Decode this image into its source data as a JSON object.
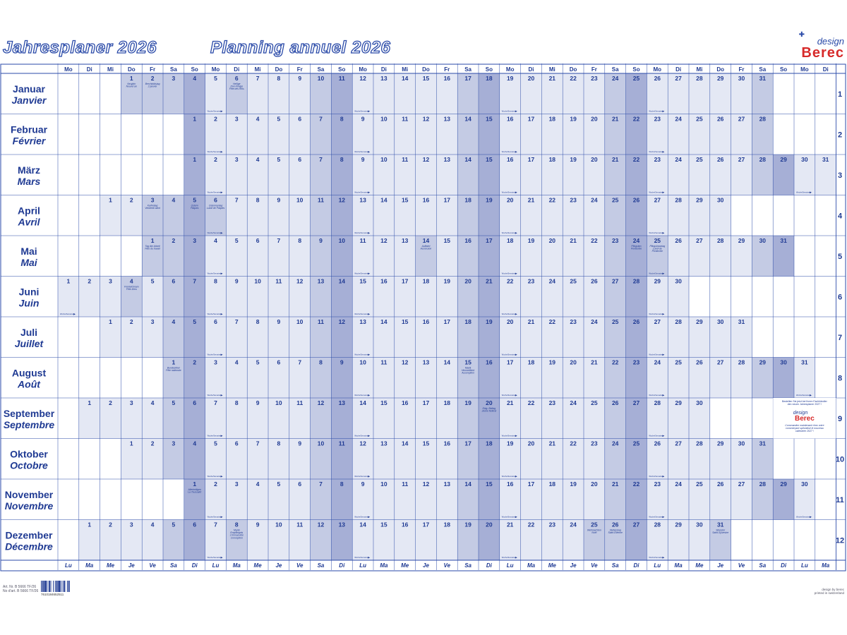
{
  "header": {
    "title_de": "Jahresplaner 2026",
    "title_fr": "Planning annuel 2026",
    "logo_design": "design",
    "logo_brand": "Berec"
  },
  "calendar": {
    "weekdays_top": [
      "Mo",
      "Di",
      "Mi",
      "Do",
      "Fr",
      "Sa",
      "So"
    ],
    "weekdays_bottom": [
      "Lu",
      "Ma",
      "Me",
      "Je",
      "Ve",
      "Sa",
      "Di"
    ],
    "months": [
      {
        "de": "Januar",
        "fr": "Janvier",
        "num": "1",
        "days": 31
      },
      {
        "de": "Februar",
        "fr": "Février",
        "num": "2",
        "days": 28
      },
      {
        "de": "März",
        "fr": "Mars",
        "num": "3",
        "days": 31
      },
      {
        "de": "April",
        "fr": "Avril",
        "num": "4",
        "days": 30
      },
      {
        "de": "Mai",
        "fr": "Mai",
        "num": "5",
        "days": 31
      },
      {
        "de": "Juni",
        "fr": "Juin",
        "num": "6",
        "days": 30
      },
      {
        "de": "Juli",
        "fr": "Juillet",
        "num": "7",
        "days": 31
      },
      {
        "de": "August",
        "fr": "Août",
        "num": "8",
        "days": 31
      },
      {
        "de": "September",
        "fr": "Septembre",
        "num": "9",
        "days": 30
      },
      {
        "de": "Oktober",
        "fr": "Octobre",
        "num": "10",
        "days": 31
      },
      {
        "de": "November",
        "fr": "Novembre",
        "num": "11",
        "days": 30
      },
      {
        "de": "Dezember",
        "fr": "Décembre",
        "num": "12",
        "days": 31
      }
    ],
    "start_offsets": [
      3,
      6,
      6,
      2,
      4,
      0,
      2,
      5,
      1,
      3,
      6,
      1
    ],
    "holidays": [
      {
        "m": 0,
        "d": 1,
        "text": [
          "Neujahr",
          "Nouvel an"
        ]
      },
      {
        "m": 0,
        "d": 2,
        "text": [
          "Berchtoldstag",
          "2 janvier"
        ]
      },
      {
        "m": 0,
        "d": 6,
        "text": [
          "Heilige",
          "Drei Könige",
          "Fête des Rois"
        ]
      },
      {
        "m": 3,
        "d": 3,
        "text": [
          "Karfreitag",
          "Vendredi saint"
        ]
      },
      {
        "m": 3,
        "d": 5,
        "text": [
          "Ostern",
          "Pâques"
        ]
      },
      {
        "m": 3,
        "d": 6,
        "text": [
          "Ostermontag",
          "Lundi de Pâques"
        ]
      },
      {
        "m": 4,
        "d": 1,
        "text": [
          "Tag der Arbeit",
          "Fête du travail"
        ]
      },
      {
        "m": 4,
        "d": 14,
        "text": [
          "Auffahrt",
          "Ascension"
        ]
      },
      {
        "m": 4,
        "d": 24,
        "text": [
          "Pfingsten",
          "Pentecôte"
        ]
      },
      {
        "m": 4,
        "d": 25,
        "text": [
          "Pfingstmontag",
          "Lundi de",
          "Pentecôte"
        ]
      },
      {
        "m": 5,
        "d": 4,
        "text": [
          "Fronleichnam",
          "Fête-Dieu"
        ]
      },
      {
        "m": 7,
        "d": 1,
        "text": [
          "Bundesfeier",
          "Fête nationale"
        ]
      },
      {
        "m": 7,
        "d": 15,
        "text": [
          "Mariä",
          "Himmelfahrt",
          "Assomption"
        ]
      },
      {
        "m": 8,
        "d": 20,
        "text": [
          "Eidg. Bettag",
          "Jeûne fédéral"
        ]
      },
      {
        "m": 10,
        "d": 1,
        "text": [
          "Allerheiligen",
          "La Toussaint"
        ]
      },
      {
        "m": 11,
        "d": 8,
        "text": [
          "Mariä",
          "Empfängnis",
          "L'Immaculée",
          "Conception"
        ]
      },
      {
        "m": 11,
        "d": 25,
        "text": [
          "Weihnachten",
          "Noël"
        ]
      },
      {
        "m": 11,
        "d": 26,
        "text": [
          "Stefanstag",
          "Saint-Etienne"
        ]
      },
      {
        "m": 11,
        "d": 31,
        "text": [
          "Silvester",
          "Saint-Sylvestre"
        ]
      }
    ],
    "week_marker": "Woche/Semaine",
    "promo": {
      "de": [
        "Bestellen Sie jetzt bei Ihrem Fachhändler",
        "den neuen Jahresplaner 2027 !"
      ],
      "logo_design": "design",
      "logo_brand": "Berec",
      "fr": [
        "Commandez maintenant chez votre",
        "commerçant spécialisé le nouveau",
        "calendrier 2027 !"
      ]
    }
  },
  "footer": {
    "art_de": "Art. Nr. B 5666 TF/26",
    "art_fr": "No d'art. B 5666 TF/26",
    "barcode_number": "7610184652511",
    "credit_1": "design by berec",
    "credit_2": "printed in switzerland"
  },
  "colors": {
    "ink": "#1f3a93",
    "grid": "#2a4aa8",
    "weekday_fill": "#e4e8f4",
    "saturday_fill": "#c4cbe4",
    "sunday_fill": "#a6afd6",
    "holiday_fill": "#c4cbe4",
    "brand_red": "#d72a2a"
  }
}
